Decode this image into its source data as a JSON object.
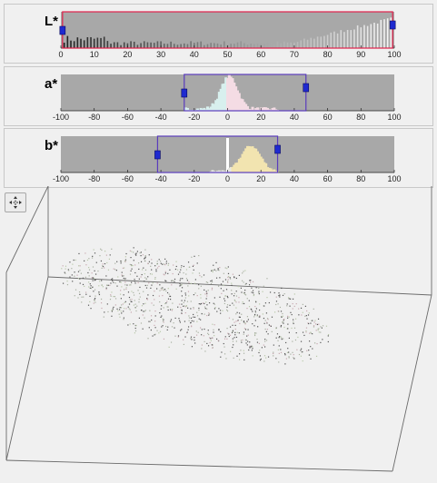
{
  "channels": [
    {
      "id": "L",
      "label": "L*",
      "xlim": [
        0,
        100
      ],
      "ticks": [
        0,
        10,
        20,
        30,
        40,
        50,
        60,
        70,
        80,
        90,
        100
      ],
      "selection": [
        0.5,
        99.5
      ]
    },
    {
      "id": "a",
      "label": "a*",
      "xlim": [
        -100,
        100
      ],
      "ticks": [
        -100,
        -80,
        -60,
        -40,
        -20,
        0,
        20,
        40,
        60,
        80,
        100
      ],
      "selection": [
        -26,
        47
      ]
    },
    {
      "id": "b",
      "label": "b*",
      "xlim": [
        -100,
        100
      ],
      "ticks": [
        -100,
        -80,
        -60,
        -40,
        -20,
        0,
        20,
        40,
        60,
        80,
        100
      ],
      "selection": [
        -42,
        30
      ]
    }
  ],
  "colors": {
    "plot_bg": "#a8a8a8",
    "selection_box": "#e0204a",
    "selection_box_alt": "#5a3cbc",
    "handle": "#1f2ad0",
    "window_bg": "#f0f0f0"
  },
  "toolbar": {
    "rotate_tool_icon": "rotate-3d-icon"
  },
  "scatter": {
    "description_icon": "point-cloud"
  }
}
